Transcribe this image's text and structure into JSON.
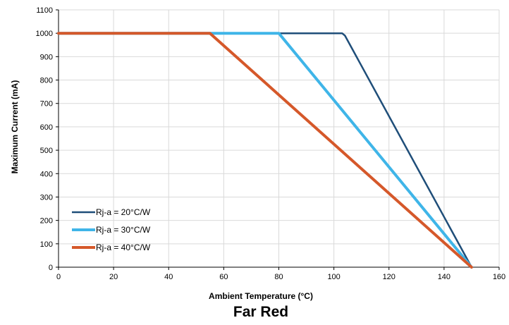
{
  "chart_data": {
    "type": "line",
    "title": "Far Red",
    "xlabel": "Ambient Temperature (°C)",
    "ylabel": "Maximum Current (mA)",
    "xlim": [
      0,
      160
    ],
    "ylim": [
      0,
      1100
    ],
    "xticks": [
      0,
      20,
      40,
      60,
      80,
      100,
      120,
      140,
      160
    ],
    "yticks": [
      0,
      100,
      200,
      300,
      400,
      500,
      600,
      700,
      800,
      900,
      1000,
      1100
    ],
    "grid": true,
    "legend_position": "bottom-left",
    "series": [
      {
        "name": "Rj-a = 20°C/W",
        "color": "#1f4e79",
        "points": [
          [
            0,
            1000
          ],
          [
            103,
            1000
          ],
          [
            104,
            990
          ],
          [
            150,
            0
          ]
        ]
      },
      {
        "name": "Rj-a = 30°C/W",
        "color": "#3fb5e8",
        "points": [
          [
            0,
            1000
          ],
          [
            80,
            1000
          ],
          [
            150,
            0
          ]
        ]
      },
      {
        "name": "Rj-a = 40°C/W",
        "color": "#d5582a",
        "points": [
          [
            0,
            1000
          ],
          [
            55,
            1000
          ],
          [
            150,
            0
          ]
        ]
      }
    ]
  }
}
